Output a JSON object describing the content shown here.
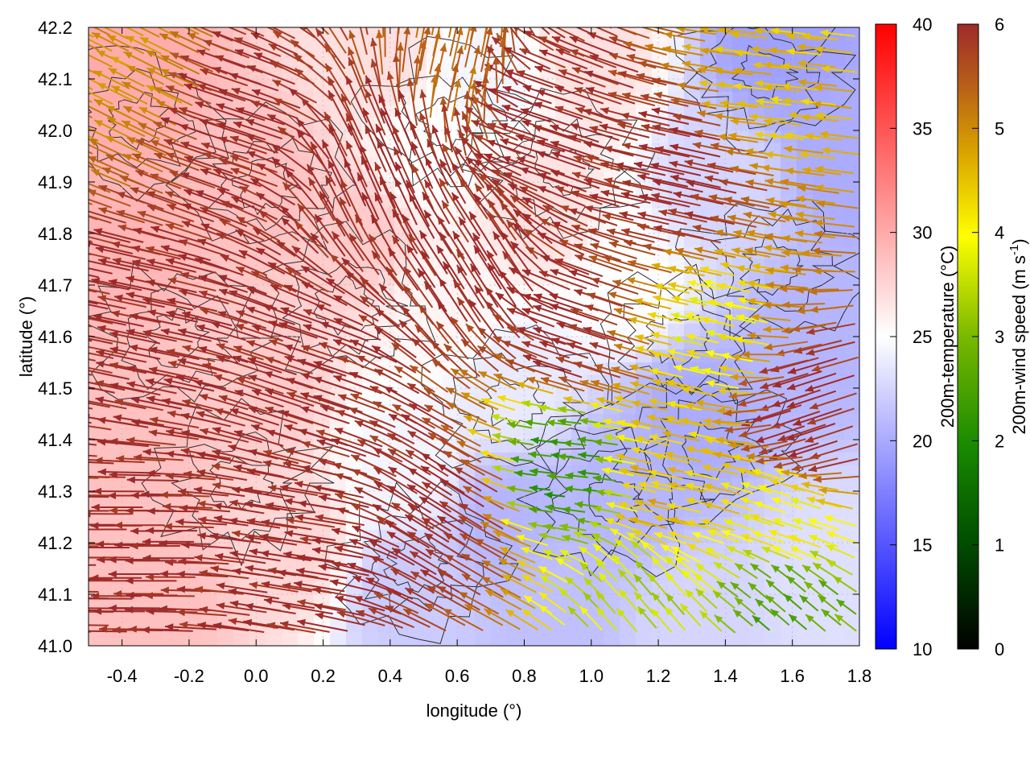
{
  "chart_data": {
    "type": "heatmap",
    "title": "",
    "xlabel": "longitude (°)",
    "ylabel": "latitude (°)",
    "xlim": [
      -0.5,
      1.8
    ],
    "ylim": [
      41.0,
      42.2
    ],
    "x_ticks": [
      "-0.4",
      "-0.2",
      "0.0",
      "0.2",
      "0.4",
      "0.6",
      "0.8",
      "1.0",
      "1.2",
      "1.4",
      "1.6",
      "1.8"
    ],
    "y_ticks": [
      "41.0",
      "41.1",
      "41.2",
      "41.3",
      "41.4",
      "41.5",
      "41.6",
      "41.7",
      "41.8",
      "41.9",
      "42.0",
      "42.1",
      "42.2"
    ],
    "x_tick_values": [
      -0.4,
      -0.2,
      0.0,
      0.2,
      0.4,
      0.6,
      0.8,
      1.0,
      1.2,
      1.4,
      1.6,
      1.8
    ],
    "y_tick_values": [
      41.0,
      41.1,
      41.2,
      41.3,
      41.4,
      41.5,
      41.6,
      41.7,
      41.8,
      41.9,
      42.0,
      42.1,
      42.2
    ],
    "grid": true,
    "temperature_colorbar": {
      "label": "200m-temperature (°C)",
      "range": [
        10,
        40
      ],
      "ticks": [
        "10",
        "15",
        "20",
        "25",
        "30",
        "35",
        "40"
      ],
      "tick_values": [
        10,
        15,
        20,
        25,
        30,
        35,
        40
      ],
      "colors": [
        "#0000ff",
        "#ffffff",
        "#ff0000"
      ]
    },
    "wind_colorbar": {
      "label_prefix": "200m-wind speed (m s",
      "label_sup": "-1",
      "label_suffix": ")",
      "range": [
        0,
        6
      ],
      "ticks": [
        "0",
        "1",
        "2",
        "3",
        "4",
        "5",
        "6"
      ],
      "tick_values": [
        0,
        1,
        2,
        3,
        4,
        5,
        6
      ],
      "colors": [
        "#000000",
        "#005a00",
        "#1a8c00",
        "#7ab800",
        "#ffff00",
        "#d8a000",
        "#b86018",
        "#9e2a2a"
      ]
    },
    "temperature_field": [
      {
        "lon": -0.4,
        "lat": 42.1,
        "temp": 33
      },
      {
        "lon": -0.4,
        "lat": 41.8,
        "temp": 32
      },
      {
        "lon": -0.35,
        "lat": 41.4,
        "temp": 31
      },
      {
        "lon": -0.3,
        "lat": 41.1,
        "temp": 31
      },
      {
        "lon": 0.0,
        "lat": 41.9,
        "temp": 31
      },
      {
        "lon": 0.0,
        "lat": 41.5,
        "temp": 30
      },
      {
        "lon": 0.1,
        "lat": 41.2,
        "temp": 29
      },
      {
        "lon": 0.3,
        "lat": 41.8,
        "temp": 30
      },
      {
        "lon": 0.35,
        "lat": 42.15,
        "temp": 28
      },
      {
        "lon": 0.5,
        "lat": 41.95,
        "temp": 25
      },
      {
        "lon": 0.55,
        "lat": 41.65,
        "temp": 26
      },
      {
        "lon": 0.45,
        "lat": 41.35,
        "temp": 24
      },
      {
        "lon": 0.45,
        "lat": 41.1,
        "temp": 20
      },
      {
        "lon": 0.7,
        "lat": 42.1,
        "temp": 24
      },
      {
        "lon": 0.85,
        "lat": 41.85,
        "temp": 28
      },
      {
        "lon": 0.75,
        "lat": 41.5,
        "temp": 23
      },
      {
        "lon": 0.75,
        "lat": 41.25,
        "temp": 18
      },
      {
        "lon": 0.9,
        "lat": 41.05,
        "temp": 19
      },
      {
        "lon": 1.0,
        "lat": 42.15,
        "temp": 28
      },
      {
        "lon": 1.1,
        "lat": 41.7,
        "temp": 25
      },
      {
        "lon": 1.1,
        "lat": 41.3,
        "temp": 18
      },
      {
        "lon": 1.3,
        "lat": 41.45,
        "temp": 17
      },
      {
        "lon": 1.3,
        "lat": 41.05,
        "temp": 21
      },
      {
        "lon": 1.4,
        "lat": 41.9,
        "temp": 21
      },
      {
        "lon": 1.55,
        "lat": 42.15,
        "temp": 16
      },
      {
        "lon": 1.65,
        "lat": 41.6,
        "temp": 18
      },
      {
        "lon": 1.7,
        "lat": 41.15,
        "temp": 22
      },
      {
        "lon": 1.75,
        "lat": 41.95,
        "temp": 17
      }
    ],
    "wind_field": [
      {
        "lon": -0.3,
        "lat": 42.1,
        "u": -0.8,
        "v": 0.4,
        "speed": 4.5
      },
      {
        "lon": 0.0,
        "lat": 42.0,
        "u": -0.9,
        "v": 0.3,
        "speed": 6.0
      },
      {
        "lon": 0.4,
        "lat": 41.9,
        "u": -0.4,
        "v": 0.9,
        "speed": 6.0
      },
      {
        "lon": 0.6,
        "lat": 42.1,
        "u": 0.2,
        "v": 0.9,
        "speed": 5.0
      },
      {
        "lon": 0.9,
        "lat": 42.0,
        "u": -0.9,
        "v": 0.3,
        "speed": 6.0
      },
      {
        "lon": 1.3,
        "lat": 41.9,
        "u": -0.9,
        "v": 0.2,
        "speed": 6.0
      },
      {
        "lon": 1.6,
        "lat": 42.1,
        "u": -0.9,
        "v": 0.1,
        "speed": 4.0
      },
      {
        "lon": -0.3,
        "lat": 41.6,
        "u": -0.95,
        "v": 0.2,
        "speed": 6.0
      },
      {
        "lon": 0.2,
        "lat": 41.5,
        "u": -0.9,
        "v": 0.3,
        "speed": 6.0
      },
      {
        "lon": 0.7,
        "lat": 41.7,
        "u": -0.5,
        "v": 0.8,
        "speed": 6.0
      },
      {
        "lon": 1.0,
        "lat": 41.6,
        "u": -0.9,
        "v": 0.3,
        "speed": 6.0
      },
      {
        "lon": 1.4,
        "lat": 41.6,
        "u": -0.9,
        "v": 0.2,
        "speed": 3.5
      },
      {
        "lon": 1.7,
        "lat": 41.45,
        "u": -0.9,
        "v": -0.3,
        "speed": 6.0
      },
      {
        "lon": -0.3,
        "lat": 41.2,
        "u": -1.0,
        "v": 0.0,
        "speed": 6.0
      },
      {
        "lon": 0.2,
        "lat": 41.2,
        "u": -0.95,
        "v": 0.15,
        "speed": 6.0
      },
      {
        "lon": 0.6,
        "lat": 41.25,
        "u": -0.8,
        "v": 0.5,
        "speed": 6.0
      },
      {
        "lon": 0.95,
        "lat": 41.35,
        "u": -0.9,
        "v": 0.1,
        "speed": 2.0
      },
      {
        "lon": 1.3,
        "lat": 41.3,
        "u": -0.9,
        "v": 0.2,
        "speed": 4.0
      },
      {
        "lon": 1.6,
        "lat": 41.25,
        "u": -0.9,
        "v": 0.3,
        "speed": 3.5
      },
      {
        "lon": 1.2,
        "lat": 41.05,
        "u": -0.6,
        "v": 0.7,
        "speed": 3.0
      },
      {
        "lon": 1.6,
        "lat": 41.05,
        "u": -0.7,
        "v": 0.6,
        "speed": 2.3
      }
    ]
  }
}
